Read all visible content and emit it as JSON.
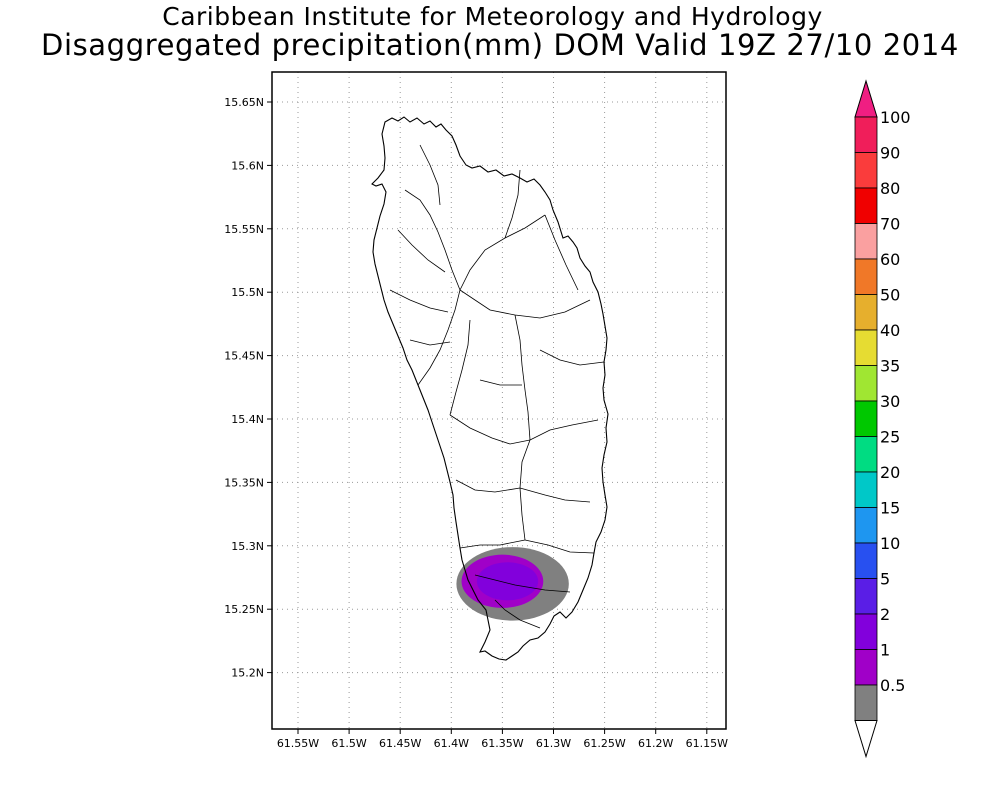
{
  "title": {
    "line1": "Caribbean Institute for Meteorology and Hydrology",
    "line2": "Disaggregated precipitation(mm) DOM Valid 19Z 27/10 2014"
  },
  "map": {
    "region": "Dominica",
    "lon_ticks": [
      "61.55W",
      "61.5W",
      "61.45W",
      "61.4W",
      "61.35W",
      "61.3W",
      "61.25W",
      "61.2W",
      "61.15W"
    ],
    "lat_ticks": [
      "15.65N",
      "15.6N",
      "15.55N",
      "15.5N",
      "15.45N",
      "15.4N",
      "15.35N",
      "15.3N",
      "15.25N",
      "15.2N"
    ],
    "precipitation_areas": [
      {
        "level": "0.5-1",
        "color": "#808080",
        "center": [
          -61.34,
          15.27
        ],
        "half_size": [
          0.055,
          0.029
        ]
      },
      {
        "level": "1-2",
        "color": "#a000c8",
        "center": [
          -61.35,
          15.272
        ],
        "half_size": [
          0.04,
          0.021
        ]
      },
      {
        "level": "2-5",
        "color": "#8200dc",
        "center": [
          -61.345,
          15.272
        ],
        "half_size": [
          0.03,
          0.015
        ]
      }
    ]
  },
  "colorbar": {
    "labels": [
      "100",
      "90",
      "80",
      "70",
      "60",
      "50",
      "40",
      "35",
      "30",
      "25",
      "20",
      "15",
      "10",
      "5",
      "2",
      "1",
      "0.5"
    ],
    "colors": [
      "#f01e5a",
      "#fa3c3c",
      "#f00000",
      "#faa0a0",
      "#f07828",
      "#e6af2d",
      "#e6dc32",
      "#a0e632",
      "#00c800",
      "#00dc82",
      "#00c8c8",
      "#1e96f0",
      "#2850f0",
      "#5a1ee6",
      "#8200dc",
      "#a000c8",
      "#808080"
    ],
    "over_color": "#f01e82",
    "under_color": "#ffffff"
  }
}
